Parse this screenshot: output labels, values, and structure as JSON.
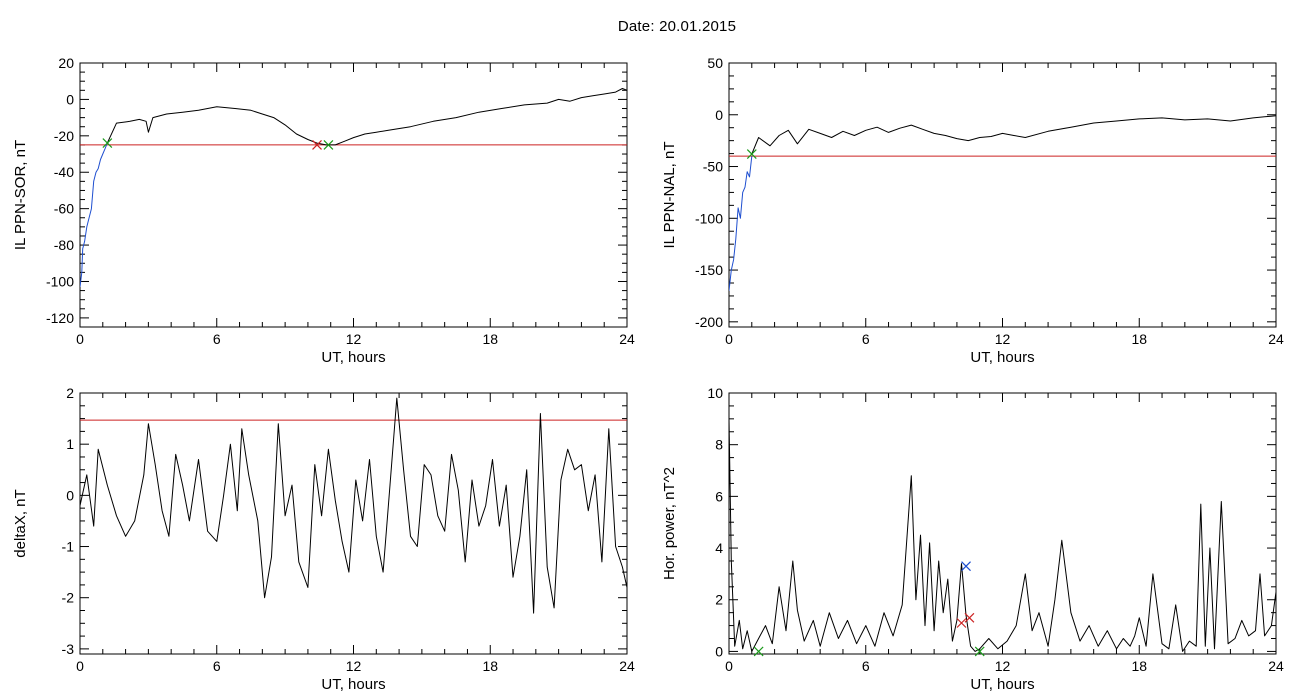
{
  "figure": {
    "title": "Date:  20.01.2015"
  },
  "chart_data": [
    {
      "type": "line",
      "xlabel": "UT, hours",
      "ylabel": "IL PPN-SOR, nT",
      "xlim": [
        0,
        24
      ],
      "ylim": [
        -125,
        20
      ],
      "x_ticks": [
        0,
        6,
        12,
        18,
        24
      ],
      "y_ticks": [
        -120,
        -100,
        -80,
        -60,
        -40,
        -20,
        0,
        20
      ],
      "threshold": -25,
      "series": [
        {
          "color": "#000000",
          "x": [
            1.2,
            1.6,
            2.2,
            2.6,
            2.9,
            3.0,
            3.2,
            3.8,
            4.5,
            5.2,
            6.0,
            6.8,
            7.5,
            8.0,
            8.5,
            9.0,
            9.5,
            10.0,
            10.4,
            10.8,
            11.2,
            11.6,
            12.0,
            12.5,
            13.0,
            13.5,
            14.5,
            15.5,
            16.5,
            17.5,
            18.5,
            19.5,
            20.5,
            21.0,
            21.5,
            22.0,
            22.5,
            23.0,
            23.5,
            23.8,
            24.0
          ],
          "y": [
            -24,
            -13,
            -12,
            -11,
            -12,
            -18,
            -10,
            -8,
            -7,
            -6,
            -4,
            -5,
            -6,
            -8,
            -10,
            -14,
            -19,
            -22,
            -24,
            -25,
            -25,
            -23,
            -21,
            -19,
            -18,
            -17,
            -15,
            -12,
            -10,
            -7,
            -5,
            -3,
            -2,
            0,
            -1,
            1,
            2,
            3,
            4,
            6,
            5
          ]
        },
        {
          "color": "#1f4fd0",
          "x": [
            0.0,
            0.08,
            0.12,
            0.2,
            0.3,
            0.4,
            0.5,
            0.6,
            0.7,
            0.8,
            0.9,
            1.0,
            1.1,
            1.2
          ],
          "y": [
            -103,
            -95,
            -82,
            -78,
            -70,
            -65,
            -60,
            -45,
            -40,
            -38,
            -33,
            -30,
            -27,
            -24
          ]
        }
      ],
      "markers": [
        {
          "x": 10.4,
          "y": -25,
          "color": "#cc2222"
        },
        {
          "x": 10.9,
          "y": -25,
          "color": "#1a9a1a"
        },
        {
          "x": 1.2,
          "y": -24,
          "color": "#1a9a1a"
        }
      ]
    },
    {
      "type": "line",
      "xlabel": "UT, hours",
      "ylabel": "IL PPN-NAL, nT",
      "xlim": [
        0,
        24
      ],
      "ylim": [
        -205,
        50
      ],
      "x_ticks": [
        0,
        6,
        12,
        18,
        24
      ],
      "y_ticks": [
        -200,
        -150,
        -100,
        -50,
        0,
        50
      ],
      "threshold": -40,
      "series": [
        {
          "color": "#000000",
          "x": [
            1.0,
            1.3,
            1.8,
            2.2,
            2.6,
            3.0,
            3.5,
            4.0,
            4.5,
            5.0,
            5.5,
            6.0,
            6.5,
            7.0,
            7.5,
            8.0,
            8.5,
            9.0,
            9.5,
            10.0,
            10.5,
            11.0,
            11.5,
            12.0,
            12.5,
            13.0,
            14.0,
            15.0,
            16.0,
            17.0,
            18.0,
            19.0,
            20.0,
            21.0,
            22.0,
            23.0,
            23.5,
            24.0
          ],
          "y": [
            -38,
            -22,
            -30,
            -20,
            -15,
            -28,
            -14,
            -18,
            -22,
            -16,
            -20,
            -15,
            -12,
            -17,
            -13,
            -10,
            -14,
            -18,
            -20,
            -23,
            -25,
            -22,
            -21,
            -18,
            -20,
            -22,
            -16,
            -12,
            -8,
            -6,
            -4,
            -3,
            -5,
            -4,
            -6,
            -3,
            -2,
            -1
          ]
        },
        {
          "color": "#1f4fd0",
          "x": [
            0.0,
            0.1,
            0.2,
            0.3,
            0.4,
            0.5,
            0.6,
            0.7,
            0.8,
            0.9,
            1.0
          ],
          "y": [
            -170,
            -150,
            -140,
            -120,
            -90,
            -100,
            -75,
            -70,
            -55,
            -60,
            -40
          ]
        }
      ],
      "markers": [
        {
          "x": 1.0,
          "y": -38,
          "color": "#1a9a1a"
        }
      ]
    },
    {
      "type": "line",
      "xlabel": "UT, hours",
      "ylabel": "deltaX, nT",
      "xlim": [
        0,
        24
      ],
      "ylim": [
        -3.1,
        2.0
      ],
      "x_ticks": [
        0,
        6,
        12,
        18,
        24
      ],
      "y_ticks": [
        -3,
        -2,
        -1,
        0,
        1,
        2
      ],
      "threshold": 1.47,
      "series": [
        {
          "color": "#000000",
          "x": [
            0.0,
            0.3,
            0.6,
            0.8,
            1.2,
            1.6,
            2.0,
            2.4,
            2.8,
            3.0,
            3.3,
            3.6,
            3.9,
            4.2,
            4.5,
            4.8,
            5.2,
            5.6,
            6.0,
            6.3,
            6.6,
            6.9,
            7.1,
            7.4,
            7.8,
            8.1,
            8.4,
            8.7,
            9.0,
            9.3,
            9.6,
            10.0,
            10.3,
            10.6,
            10.9,
            11.2,
            11.5,
            11.8,
            12.1,
            12.4,
            12.7,
            13.0,
            13.3,
            13.6,
            13.9,
            14.2,
            14.5,
            14.8,
            15.1,
            15.4,
            15.7,
            16.0,
            16.3,
            16.6,
            16.9,
            17.2,
            17.5,
            17.8,
            18.1,
            18.4,
            18.7,
            19.0,
            19.3,
            19.6,
            19.9,
            20.2,
            20.5,
            20.8,
            21.1,
            21.4,
            21.7,
            22.0,
            22.3,
            22.6,
            22.9,
            23.2,
            23.5,
            23.8,
            24.0
          ],
          "y": [
            -0.2,
            0.4,
            -0.6,
            0.9,
            0.2,
            -0.4,
            -0.8,
            -0.5,
            0.4,
            1.4,
            0.6,
            -0.3,
            -0.8,
            0.8,
            0.2,
            -0.5,
            0.7,
            -0.7,
            -0.9,
            0.0,
            1.0,
            -0.3,
            1.3,
            0.4,
            -0.5,
            -2.0,
            -1.2,
            1.4,
            -0.4,
            0.2,
            -1.3,
            -1.8,
            0.6,
            -0.4,
            0.9,
            -0.1,
            -0.9,
            -1.5,
            0.3,
            -0.5,
            0.7,
            -0.8,
            -1.5,
            0.2,
            1.9,
            0.5,
            -0.8,
            -1.0,
            0.6,
            0.4,
            -0.4,
            -0.7,
            0.8,
            0.1,
            -1.3,
            0.3,
            -0.6,
            -0.2,
            0.7,
            -0.6,
            0.2,
            -1.6,
            -0.8,
            0.5,
            -2.3,
            1.6,
            -1.4,
            -2.2,
            0.3,
            0.9,
            0.5,
            0.6,
            -0.3,
            0.4,
            -1.3,
            1.3,
            -1.0,
            -1.4,
            -1.8
          ]
        }
      ],
      "markers": []
    },
    {
      "type": "line",
      "xlabel": "UT, hours",
      "ylabel": "Hor. power, nT^2",
      "xlim": [
        0,
        24
      ],
      "ylim": [
        -0.1,
        10
      ],
      "x_ticks": [
        0,
        6,
        12,
        18,
        24
      ],
      "y_ticks": [
        0,
        2,
        4,
        6,
        8,
        10
      ],
      "threshold": null,
      "series": [
        {
          "color": "#000000",
          "x": [
            0.0,
            0.1,
            0.25,
            0.45,
            0.6,
            0.8,
            1.0,
            1.3,
            1.6,
            1.9,
            2.2,
            2.5,
            2.8,
            3.0,
            3.3,
            3.7,
            4.0,
            4.4,
            4.8,
            5.2,
            5.6,
            6.0,
            6.4,
            6.8,
            7.2,
            7.6,
            8.0,
            8.2,
            8.4,
            8.6,
            8.8,
            9.0,
            9.2,
            9.4,
            9.6,
            9.8,
            10.0,
            10.2,
            10.4,
            10.6,
            10.8,
            11.0,
            11.4,
            11.8,
            12.2,
            12.6,
            13.0,
            13.3,
            13.6,
            14.0,
            14.3,
            14.6,
            15.0,
            15.4,
            15.8,
            16.2,
            16.6,
            17.0,
            17.3,
            17.6,
            17.8,
            18.0,
            18.3,
            18.6,
            19.0,
            19.3,
            19.6,
            19.9,
            20.2,
            20.5,
            20.7,
            20.9,
            21.1,
            21.3,
            21.6,
            21.9,
            22.2,
            22.5,
            22.8,
            23.1,
            23.3,
            23.5,
            23.8,
            24.0
          ],
          "y": [
            9.0,
            3.5,
            0.2,
            1.2,
            0.1,
            0.8,
            0.0,
            0.5,
            1.0,
            0.3,
            2.5,
            0.8,
            3.5,
            1.6,
            0.4,
            1.2,
            0.2,
            1.5,
            0.5,
            1.2,
            0.3,
            1.0,
            0.2,
            1.5,
            0.6,
            1.8,
            6.8,
            2.0,
            4.5,
            1.0,
            4.2,
            0.8,
            3.5,
            1.5,
            2.8,
            0.4,
            1.2,
            3.4,
            1.4,
            0.2,
            0.0,
            0.1,
            0.5,
            0.1,
            0.4,
            1.0,
            3.0,
            0.8,
            1.5,
            0.2,
            2.0,
            4.3,
            1.5,
            0.4,
            1.0,
            0.2,
            0.8,
            0.1,
            0.5,
            0.2,
            0.6,
            1.3,
            0.2,
            3.0,
            0.3,
            0.1,
            1.8,
            0.0,
            0.4,
            0.2,
            5.7,
            0.2,
            4.0,
            0.1,
            5.8,
            0.3,
            0.5,
            1.2,
            0.6,
            0.8,
            3.0,
            0.6,
            1.0,
            2.3
          ]
        }
      ],
      "markers": [
        {
          "x": 10.4,
          "y": 3.3,
          "color": "#1f4fd0"
        },
        {
          "x": 10.2,
          "y": 1.1,
          "color": "#cc2222"
        },
        {
          "x": 10.55,
          "y": 1.3,
          "color": "#cc2222"
        },
        {
          "x": 1.3,
          "y": 0.0,
          "color": "#1a9a1a"
        },
        {
          "x": 11.0,
          "y": 0.0,
          "color": "#1a9a1a"
        }
      ]
    }
  ]
}
